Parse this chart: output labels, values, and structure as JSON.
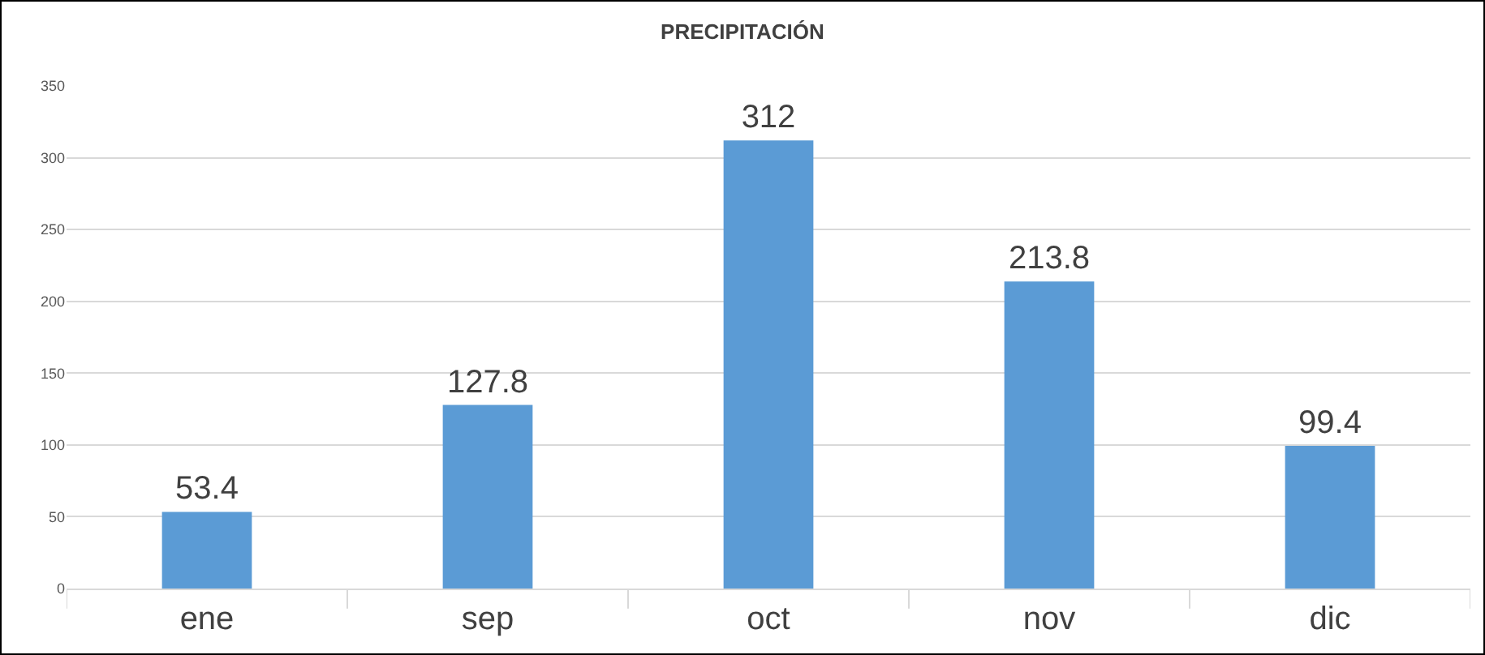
{
  "chart_data": {
    "type": "bar",
    "title": "PRECIPITACIÓN",
    "categories": [
      "ene",
      "sep",
      "oct",
      "nov",
      "dic"
    ],
    "values": [
      53.4,
      127.8,
      312,
      213.8,
      99.4
    ],
    "color": "#5b9bd5",
    "ylim": [
      0,
      350
    ],
    "yticks": [
      0,
      50,
      100,
      150,
      200,
      250,
      300,
      350
    ],
    "grid": "y",
    "data_labels": true
  }
}
